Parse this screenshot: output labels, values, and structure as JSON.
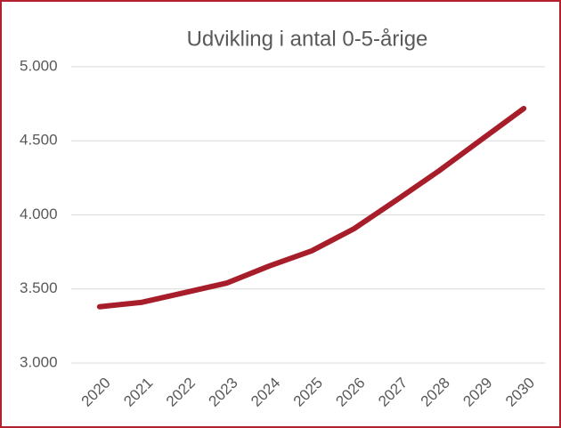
{
  "chart_data": {
    "type": "line",
    "title": "Udvikling i antal 0-5-årige",
    "categories": [
      "2020",
      "2021",
      "2022",
      "2023",
      "2024",
      "2025",
      "2026",
      "2027",
      "2028",
      "2029",
      "2030"
    ],
    "series": [
      {
        "name": "Antal 0-5-årige",
        "color": "#a71d2a",
        "values": [
          3380,
          3410,
          3475,
          3540,
          3655,
          3757,
          3907,
          4100,
          4297,
          4508,
          4718
        ]
      }
    ],
    "ylim": [
      3000,
      5000
    ],
    "yticks": [
      {
        "value": 3000,
        "label": "3.000"
      },
      {
        "value": 3500,
        "label": "3.500"
      },
      {
        "value": 4000,
        "label": "4.000"
      },
      {
        "value": 4500,
        "label": "4.500"
      },
      {
        "value": 5000,
        "label": "5.000"
      }
    ],
    "grid": true
  }
}
